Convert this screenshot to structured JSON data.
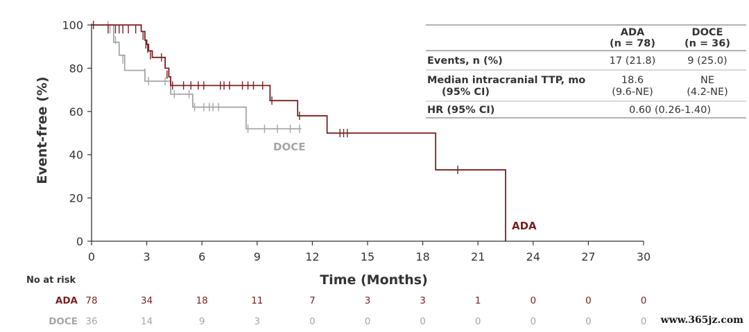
{
  "chart_data": {
    "type": "line",
    "ylabel": "Event-free (%)",
    "xlabel": "Time (Months)",
    "xlim": [
      0,
      30
    ],
    "ylim": [
      0,
      100
    ],
    "xticks": [
      "0",
      "3",
      "6",
      "9",
      "12",
      "15",
      "18",
      "21",
      "24",
      "27",
      "30"
    ],
    "yticks": [
      "0",
      "20",
      "40",
      "60",
      "80",
      "100"
    ],
    "series": [
      {
        "name": "ADA",
        "color": "#7a1f1f",
        "steps": [
          [
            0,
            100
          ],
          [
            2.7,
            97
          ],
          [
            2.9,
            93
          ],
          [
            3.0,
            91
          ],
          [
            3.1,
            88
          ],
          [
            3.3,
            85
          ],
          [
            3.9,
            85
          ],
          [
            4.0,
            80
          ],
          [
            4.2,
            76
          ],
          [
            4.3,
            72
          ],
          [
            9.6,
            72
          ],
          [
            9.7,
            65
          ],
          [
            11.1,
            65
          ],
          [
            11.2,
            58
          ],
          [
            12.7,
            58
          ],
          [
            12.8,
            50
          ],
          [
            18.6,
            50
          ],
          [
            18.7,
            33
          ],
          [
            22.5,
            33
          ],
          [
            22.5,
            0
          ]
        ],
        "end": 22.5,
        "censor": [
          [
            0.1,
            100
          ],
          [
            0.9,
            98
          ],
          [
            1.3,
            98
          ],
          [
            1.5,
            98
          ],
          [
            1.7,
            98
          ],
          [
            2.0,
            98
          ],
          [
            2.4,
            98
          ],
          [
            2.8,
            95
          ],
          [
            2.95,
            91
          ],
          [
            3.05,
            89
          ],
          [
            3.2,
            86
          ],
          [
            3.8,
            85
          ],
          [
            4.1,
            77
          ],
          [
            4.4,
            72
          ],
          [
            5.0,
            72
          ],
          [
            5.4,
            72
          ],
          [
            5.8,
            72
          ],
          [
            6.1,
            72
          ],
          [
            7.0,
            72
          ],
          [
            7.2,
            72
          ],
          [
            7.5,
            72
          ],
          [
            8.2,
            72
          ],
          [
            8.5,
            72
          ],
          [
            8.8,
            72
          ],
          [
            9.3,
            72
          ],
          [
            9.8,
            65
          ],
          [
            11.3,
            58
          ],
          [
            13.5,
            50
          ],
          [
            13.7,
            50
          ],
          [
            13.9,
            50
          ],
          [
            19.9,
            33
          ]
        ]
      },
      {
        "name": "DOCE",
        "color": "#a6a6a6",
        "steps": [
          [
            0,
            100
          ],
          [
            1.2,
            92
          ],
          [
            1.5,
            86
          ],
          [
            1.8,
            79
          ],
          [
            2.5,
            79
          ],
          [
            2.9,
            74
          ],
          [
            4.2,
            74
          ],
          [
            4.3,
            68
          ],
          [
            5.4,
            68
          ],
          [
            5.5,
            62
          ],
          [
            8.3,
            62
          ],
          [
            8.4,
            52
          ],
          [
            11.4,
            52
          ]
        ],
        "end": 11.4,
        "censor": [
          [
            0.9,
            100
          ],
          [
            1.0,
            98
          ],
          [
            1.3,
            93
          ],
          [
            1.7,
            84
          ],
          [
            2.9,
            78
          ],
          [
            3.1,
            74
          ],
          [
            4.0,
            74
          ],
          [
            4.5,
            68
          ],
          [
            5.3,
            68
          ],
          [
            5.6,
            62
          ],
          [
            6.1,
            62
          ],
          [
            6.4,
            62
          ],
          [
            6.6,
            62
          ],
          [
            6.9,
            62
          ],
          [
            8.5,
            52
          ],
          [
            9.4,
            52
          ],
          [
            10.1,
            52
          ],
          [
            10.8,
            52
          ],
          [
            11.3,
            52
          ]
        ]
      }
    ],
    "annotations": {
      "doce": "DOCE",
      "ada": "ADA"
    }
  },
  "stats_table": {
    "col_headers": [
      {
        "line1": "ADA",
        "line2": "(n = 78)"
      },
      {
        "line1": "DOCE",
        "line2": "(n = 36)"
      }
    ],
    "rows": [
      {
        "label": "Events, n (%)",
        "ada": "17 (21.8)",
        "doce": "9 (25.0)"
      },
      {
        "label1": "Median intracranial TTP, mo",
        "label2": "(95% CI)",
        "ada1": "18.6",
        "ada2": "(9.6-NE)",
        "doce1": "NE",
        "doce2": "(4.2-NE)"
      },
      {
        "label": "HR (95% CI)",
        "value": "0.60 (0.26-1.40)"
      }
    ]
  },
  "at_risk": {
    "title": "No at risk",
    "rows": [
      {
        "label": "ADA",
        "color": "#7a1f1f",
        "values": [
          "78",
          "34",
          "18",
          "11",
          "7",
          "3",
          "3",
          "1",
          "0",
          "0",
          "0"
        ]
      },
      {
        "label": "DOCE",
        "color": "#a6a6a6",
        "values": [
          "36",
          "14",
          "9",
          "3",
          "0",
          "0",
          "0",
          "0",
          "0",
          "0",
          "0"
        ]
      }
    ]
  },
  "watermark": "www.365jz.com"
}
